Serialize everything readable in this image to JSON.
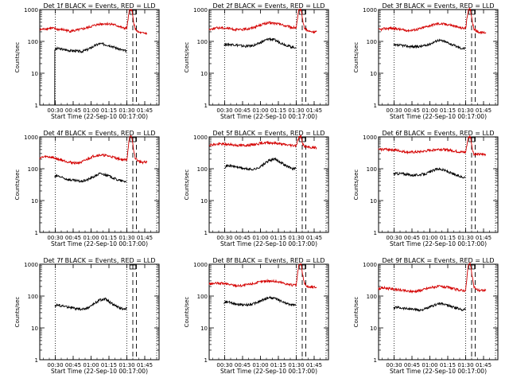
{
  "chart_data": [
    {
      "type": "line",
      "title": "Det 1f BLACK = Events, RED = LLD",
      "xlabel": "Start Time (22-Sep-10 00:17:00)",
      "ylabel": "Counts/sec",
      "x_unit": "minutes after 00:17:00",
      "x_ticks": [
        "00:30",
        "00:45",
        "01:00",
        "01:15",
        "01:30",
        "01:45"
      ],
      "xlim": [
        0,
        100
      ],
      "ylim": [
        1,
        1000
      ],
      "yscale": "log",
      "y_ticks": [
        "1",
        "10",
        "100",
        "1000"
      ],
      "dotted_lines_x": [
        13,
        73,
        98
      ],
      "dashed_lines_x": [
        78,
        81
      ],
      "highlight_box_x": [
        75.5,
        80.5
      ],
      "series": [
        {
          "color": "#000000",
          "x": [
            12.5,
            12.6,
            15,
            20,
            25,
            30,
            35,
            40,
            45,
            50,
            55,
            60,
            65,
            70,
            72.8
          ],
          "y": [
            1,
            55,
            60,
            55,
            52,
            50,
            48,
            55,
            70,
            85,
            80,
            72,
            60,
            52,
            50
          ]
        },
        {
          "color": "#d40000",
          "x": [
            0,
            5,
            10,
            15,
            20,
            25,
            30,
            35,
            40,
            45,
            50,
            55,
            60,
            65,
            70,
            73,
            75,
            76,
            77,
            78,
            79,
            80,
            82,
            85,
            90
          ],
          "y": [
            230,
            250,
            260,
            240,
            230,
            210,
            220,
            240,
            270,
            310,
            350,
            360,
            350,
            310,
            260,
            260,
            900,
            1000,
            1000,
            600,
            350,
            250,
            200,
            180,
            180
          ]
        }
      ]
    },
    {
      "type": "line",
      "title": "Det 2f BLACK = Events, RED = LLD",
      "xlabel": "Start Time (22-Sep-10 00:17:00)",
      "ylabel": "Counts/sec",
      "x_unit": "minutes after 00:17:00",
      "x_ticks": [
        "00:30",
        "00:45",
        "01:00",
        "01:15",
        "01:30",
        "01:45"
      ],
      "xlim": [
        0,
        100
      ],
      "ylim": [
        1,
        1000
      ],
      "yscale": "log",
      "y_ticks": [
        "1",
        "10",
        "100",
        "1000"
      ],
      "dotted_lines_x": [
        13,
        73,
        98
      ],
      "dashed_lines_x": [
        78,
        81
      ],
      "highlight_box_x": [
        75.5,
        80.5
      ],
      "series": [
        {
          "color": "#000000",
          "x": [
            12.5,
            20,
            25,
            30,
            35,
            40,
            45,
            50,
            55,
            60,
            65,
            70,
            72.8
          ],
          "y": [
            80,
            80,
            75,
            70,
            72,
            80,
            100,
            120,
            110,
            90,
            75,
            65,
            65
          ]
        },
        {
          "color": "#d40000",
          "x": [
            0,
            5,
            10,
            15,
            20,
            25,
            30,
            35,
            40,
            45,
            50,
            55,
            60,
            65,
            70,
            73,
            75,
            76,
            77,
            78,
            79,
            80,
            82,
            85,
            90
          ],
          "y": [
            240,
            260,
            270,
            260,
            240,
            230,
            240,
            260,
            300,
            350,
            380,
            370,
            340,
            300,
            270,
            270,
            900,
            1000,
            1000,
            600,
            350,
            260,
            220,
            200,
            200
          ]
        }
      ]
    },
    {
      "type": "line",
      "title": "Det 3f BLACK = Events, RED = LLD",
      "xlabel": "Start Time (22-Sep-10 00:17:00)",
      "ylabel": "Counts/sec",
      "x_unit": "minutes after 00:17:00",
      "x_ticks": [
        "00:30",
        "00:45",
        "01:00",
        "01:15",
        "01:30",
        "01:45"
      ],
      "xlim": [
        0,
        100
      ],
      "ylim": [
        1,
        1000
      ],
      "yscale": "log",
      "y_ticks": [
        "1",
        "10",
        "100",
        "1000"
      ],
      "dotted_lines_x": [
        13,
        73,
        98
      ],
      "dashed_lines_x": [
        78,
        81
      ],
      "highlight_box_x": [
        75.5,
        80.5
      ],
      "series": [
        {
          "color": "#000000",
          "x": [
            12.5,
            20,
            25,
            30,
            35,
            40,
            45,
            50,
            55,
            60,
            65,
            70,
            72.8
          ],
          "y": [
            75,
            75,
            70,
            68,
            70,
            75,
            90,
            110,
            100,
            85,
            70,
            60,
            60
          ]
        },
        {
          "color": "#d40000",
          "x": [
            0,
            5,
            10,
            15,
            20,
            25,
            30,
            35,
            40,
            45,
            50,
            55,
            60,
            65,
            70,
            73,
            75,
            76,
            77,
            78,
            79,
            80,
            82,
            85,
            90
          ],
          "y": [
            230,
            250,
            260,
            250,
            230,
            220,
            230,
            250,
            290,
            330,
            360,
            350,
            330,
            290,
            260,
            260,
            900,
            1000,
            1000,
            600,
            350,
            250,
            210,
            190,
            190
          ]
        }
      ]
    },
    {
      "type": "line",
      "title": "Det 4f BLACK = Events, RED = LLD",
      "xlabel": "Start Time (22-Sep-10 00:17:00)",
      "ylabel": "Counts/sec",
      "x_unit": "minutes after 00:17:00",
      "x_ticks": [
        "00:30",
        "00:45",
        "01:00",
        "01:15",
        "01:30",
        "01:45"
      ],
      "xlim": [
        0,
        100
      ],
      "ylim": [
        1,
        1000
      ],
      "yscale": "log",
      "y_ticks": [
        "1",
        "10",
        "100",
        "1000"
      ],
      "dotted_lines_x": [
        13,
        73,
        98
      ],
      "dashed_lines_x": [
        78,
        81
      ],
      "highlight_box_x": [
        75.5,
        80.5
      ],
      "series": [
        {
          "color": "#000000",
          "x": [
            12.5,
            15,
            20,
            25,
            30,
            35,
            40,
            45,
            50,
            55,
            60,
            65,
            70,
            72.8
          ],
          "y": [
            55,
            60,
            50,
            45,
            42,
            40,
            45,
            55,
            70,
            65,
            55,
            45,
            40,
            40
          ]
        },
        {
          "color": "#d40000",
          "x": [
            0,
            5,
            10,
            15,
            20,
            25,
            30,
            35,
            40,
            45,
            50,
            55,
            60,
            65,
            70,
            73,
            75,
            76,
            77,
            78,
            79,
            80,
            82,
            85,
            90
          ],
          "y": [
            220,
            240,
            230,
            200,
            180,
            160,
            150,
            160,
            200,
            250,
            270,
            260,
            240,
            210,
            190,
            190,
            900,
            1000,
            1000,
            600,
            330,
            220,
            180,
            160,
            160
          ]
        }
      ]
    },
    {
      "type": "line",
      "title": "Det 5f BLACK = Events, RED = LLD",
      "xlabel": "Start Time (22-Sep-10 00:17:00)",
      "ylabel": "Counts/sec",
      "x_unit": "minutes after 00:17:00",
      "x_ticks": [
        "00:30",
        "00:45",
        "01:00",
        "01:15",
        "01:30",
        "01:45"
      ],
      "xlim": [
        0,
        100
      ],
      "ylim": [
        1,
        1000
      ],
      "yscale": "log",
      "y_ticks": [
        "1",
        "10",
        "100",
        "1000"
      ],
      "dotted_lines_x": [
        13,
        73,
        98
      ],
      "dashed_lines_x": [
        78,
        81
      ],
      "highlight_box_x": [
        75.5,
        80.5
      ],
      "series": [
        {
          "color": "#000000",
          "x": [
            12.5,
            15,
            20,
            25,
            30,
            35,
            40,
            45,
            50,
            55,
            60,
            65,
            70,
            72.8
          ],
          "y": [
            110,
            125,
            120,
            110,
            100,
            95,
            100,
            130,
            180,
            200,
            160,
            120,
            100,
            100
          ]
        },
        {
          "color": "#d40000",
          "x": [
            0,
            5,
            10,
            15,
            20,
            25,
            30,
            35,
            40,
            45,
            50,
            55,
            60,
            65,
            70,
            73,
            75,
            76,
            77,
            78,
            79,
            80,
            82,
            85,
            90
          ],
          "y": [
            560,
            580,
            600,
            580,
            560,
            540,
            540,
            560,
            600,
            650,
            660,
            640,
            600,
            560,
            540,
            540,
            950,
            1000,
            1000,
            700,
            550,
            500,
            480,
            460,
            460
          ]
        }
      ]
    },
    {
      "type": "line",
      "title": "Det 6f BLACK = Events, RED = LLD",
      "xlabel": "Start Time (22-Sep-10 00:17:00)",
      "ylabel": "Counts/sec",
      "x_unit": "minutes after 00:17:00",
      "x_ticks": [
        "00:30",
        "00:45",
        "01:00",
        "01:15",
        "01:30",
        "01:45"
      ],
      "xlim": [
        0,
        100
      ],
      "ylim": [
        1,
        1000
      ],
      "yscale": "log",
      "y_ticks": [
        "1",
        "10",
        "100",
        "1000"
      ],
      "dotted_lines_x": [
        13,
        73,
        98
      ],
      "dashed_lines_x": [
        78,
        81
      ],
      "highlight_box_x": [
        75.5,
        80.5
      ],
      "series": [
        {
          "color": "#000000",
          "x": [
            12.5,
            20,
            25,
            30,
            35,
            40,
            45,
            50,
            55,
            60,
            65,
            70,
            72.8
          ],
          "y": [
            70,
            70,
            65,
            62,
            65,
            70,
            85,
            100,
            90,
            75,
            62,
            55,
            55
          ]
        },
        {
          "color": "#d40000",
          "x": [
            0,
            5,
            10,
            15,
            20,
            25,
            30,
            35,
            40,
            45,
            50,
            55,
            60,
            65,
            70,
            73,
            75,
            76,
            77,
            78,
            79,
            80,
            82,
            85,
            90
          ],
          "y": [
            400,
            410,
            400,
            380,
            350,
            330,
            330,
            340,
            360,
            390,
            410,
            400,
            380,
            350,
            330,
            330,
            900,
            1000,
            1000,
            600,
            350,
            290,
            280,
            280,
            280
          ]
        }
      ]
    },
    {
      "type": "line",
      "title": "Det 7f BLACK = Events, RED = LLD",
      "xlabel": "Start Time (22-Sep-10 00:17:00)",
      "ylabel": "Counts/sec",
      "x_unit": "minutes after 00:17:00",
      "x_ticks": [
        "00:30",
        "00:45",
        "01:00",
        "01:15",
        "01:30",
        "01:45"
      ],
      "xlim": [
        0,
        100
      ],
      "ylim": [
        1,
        1000
      ],
      "yscale": "log",
      "y_ticks": [
        "1",
        "10",
        "100",
        "1000"
      ],
      "dotted_lines_x": [
        13,
        73,
        98
      ],
      "dashed_lines_x": [
        78,
        81
      ],
      "highlight_box_x": [
        75.5,
        80.5
      ],
      "series": [
        {
          "color": "#000000",
          "x": [
            12.5,
            15,
            20,
            25,
            30,
            35,
            40,
            45,
            50,
            55,
            60,
            65,
            70,
            72.8
          ],
          "y": [
            50,
            52,
            48,
            45,
            40,
            38,
            42,
            55,
            75,
            80,
            60,
            45,
            40,
            40
          ]
        }
      ]
    },
    {
      "type": "line",
      "title": "Det 8f BLACK = Events, RED = LLD",
      "xlabel": "Start Time (22-Sep-10 00:17:00)",
      "ylabel": "Counts/sec",
      "x_unit": "minutes after 00:17:00",
      "x_ticks": [
        "00:30",
        "00:45",
        "01:00",
        "01:15",
        "01:30",
        "01:45"
      ],
      "xlim": [
        0,
        100
      ],
      "ylim": [
        1,
        1000
      ],
      "yscale": "log",
      "y_ticks": [
        "1",
        "10",
        "100",
        "1000"
      ],
      "dotted_lines_x": [
        13,
        73,
        98
      ],
      "dashed_lines_x": [
        78,
        81
      ],
      "highlight_box_x": [
        75.5,
        80.5
      ],
      "series": [
        {
          "color": "#000000",
          "x": [
            12.5,
            15,
            20,
            25,
            30,
            35,
            40,
            45,
            50,
            55,
            60,
            65,
            70,
            72.8
          ],
          "y": [
            60,
            65,
            60,
            55,
            52,
            55,
            62,
            75,
            90,
            85,
            70,
            58,
            52,
            52
          ]
        },
        {
          "color": "#d40000",
          "x": [
            0,
            5,
            10,
            15,
            20,
            25,
            30,
            35,
            40,
            45,
            50,
            55,
            60,
            65,
            70,
            73,
            75,
            76,
            77,
            78,
            79,
            80,
            82,
            85,
            90
          ],
          "y": [
            240,
            250,
            250,
            240,
            220,
            210,
            220,
            240,
            260,
            290,
            300,
            290,
            270,
            240,
            220,
            220,
            900,
            1000,
            1000,
            600,
            330,
            250,
            200,
            190,
            190
          ]
        }
      ]
    },
    {
      "type": "line",
      "title": "Det 9f BLACK = Events, RED = LLD",
      "xlabel": "Start Time (22-Sep-10 00:17:00)",
      "ylabel": "Counts/sec",
      "x_unit": "minutes after 00:17:00",
      "x_ticks": [
        "00:30",
        "00:45",
        "01:00",
        "01:15",
        "01:30",
        "01:45"
      ],
      "xlim": [
        0,
        100
      ],
      "ylim": [
        1,
        1000
      ],
      "yscale": "log",
      "y_ticks": [
        "1",
        "10",
        "100",
        "1000"
      ],
      "dotted_lines_x": [
        13,
        73,
        98
      ],
      "dashed_lines_x": [
        78,
        81
      ],
      "highlight_box_x": [
        75.5,
        80.5
      ],
      "series": [
        {
          "color": "#000000",
          "x": [
            12.5,
            15,
            20,
            25,
            30,
            35,
            40,
            45,
            50,
            55,
            60,
            65,
            70,
            72.8
          ],
          "y": [
            40,
            45,
            42,
            40,
            38,
            36,
            40,
            48,
            58,
            55,
            48,
            42,
            38,
            38
          ]
        },
        {
          "color": "#d40000",
          "x": [
            0,
            5,
            10,
            15,
            20,
            25,
            30,
            35,
            40,
            45,
            50,
            55,
            60,
            65,
            70,
            73,
            75,
            76,
            77,
            78,
            79,
            80,
            82,
            85,
            90
          ],
          "y": [
            170,
            180,
            170,
            160,
            150,
            140,
            140,
            150,
            170,
            190,
            200,
            195,
            180,
            160,
            150,
            150,
            850,
            1000,
            1000,
            550,
            300,
            200,
            160,
            150,
            150
          ]
        }
      ]
    }
  ]
}
